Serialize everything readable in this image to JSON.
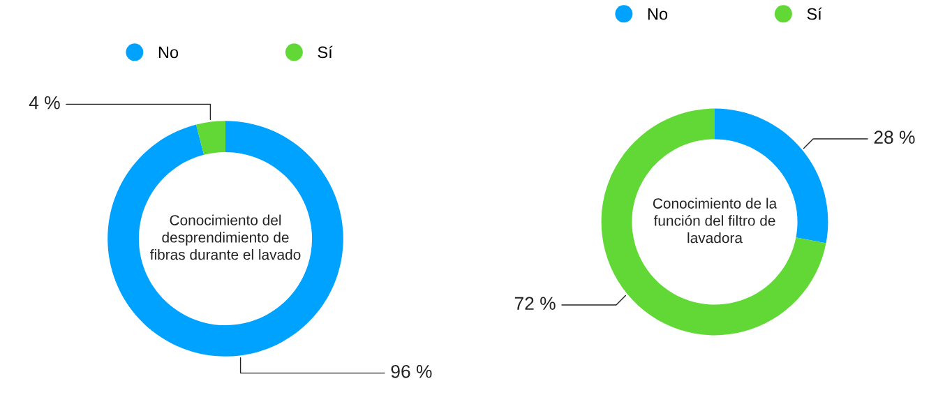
{
  "chart_data": [
    {
      "type": "donut",
      "title": "Conocimiento del\ndesprendimiento de\nfibras durante el lavado",
      "categories": [
        "No",
        "Sí"
      ],
      "values": [
        96,
        4
      ],
      "colors": [
        "#00a2ff",
        "#61d836"
      ],
      "value_labels": [
        "96 %",
        "4 %"
      ],
      "legend": "top"
    },
    {
      "type": "donut",
      "title": "Conocimiento de la\nfunción del filtro de\nlavadora",
      "categories": [
        "No",
        "Sí"
      ],
      "values": [
        28,
        72
      ],
      "colors": [
        "#00a2ff",
        "#61d836"
      ],
      "value_labels": [
        "28 %",
        "72 %"
      ],
      "legend": "top"
    }
  ]
}
